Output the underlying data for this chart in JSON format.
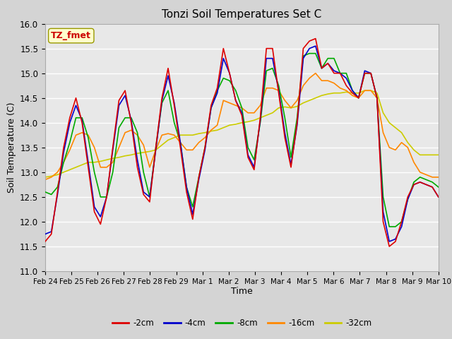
{
  "title": "Tonzi Soil Temperatures Set C",
  "xlabel": "Time",
  "ylabel": "Soil Temperature (C)",
  "ylim": [
    11.0,
    16.0
  ],
  "yticks": [
    11.0,
    11.5,
    12.0,
    12.5,
    13.0,
    13.5,
    14.0,
    14.5,
    15.0,
    15.5,
    16.0
  ],
  "xtick_labels": [
    "Feb 24",
    "Feb 25",
    "Feb 26",
    "Feb 27",
    "Feb 28",
    "Feb 29",
    "Mar 1",
    "Mar 2",
    "Mar 3",
    "Mar 4",
    "Mar 5",
    "Mar 6",
    "Mar 7",
    "Mar 8",
    "Mar 9",
    "Mar 10"
  ],
  "colors": {
    "-2cm": "#dd0000",
    "-4cm": "#0000cc",
    "-8cm": "#00aa00",
    "-16cm": "#ff8800",
    "-32cm": "#cccc00"
  },
  "annotation_text": "TZ_fmet",
  "annotation_color": "#cc0000",
  "annotation_bg": "#ffffcc",
  "linewidth": 1.2,
  "t2cm": [
    11.6,
    11.75,
    12.6,
    13.5,
    14.1,
    14.5,
    14.0,
    13.1,
    12.2,
    11.95,
    12.5,
    13.5,
    14.45,
    14.65,
    14.0,
    13.1,
    12.55,
    12.4,
    13.5,
    14.5,
    15.1,
    14.35,
    13.5,
    12.6,
    12.05,
    12.9,
    13.5,
    14.35,
    14.7,
    15.5,
    15.0,
    14.45,
    14.15,
    13.3,
    13.05,
    14.1,
    15.5,
    15.5,
    14.6,
    13.7,
    13.1,
    14.0,
    15.5,
    15.65,
    15.7,
    15.1,
    15.2,
    15.0,
    15.0,
    14.75,
    14.6,
    14.5,
    15.0,
    15.0,
    14.5,
    12.0,
    11.5,
    11.6,
    12.0,
    12.5,
    12.75,
    12.8,
    12.75,
    12.7,
    12.5
  ],
  "t4cm": [
    11.75,
    11.8,
    12.55,
    13.4,
    14.0,
    14.35,
    14.05,
    13.2,
    12.3,
    12.1,
    12.5,
    13.45,
    14.35,
    14.55,
    14.05,
    13.25,
    12.6,
    12.5,
    13.45,
    14.45,
    14.95,
    14.4,
    13.6,
    12.7,
    12.15,
    12.85,
    13.45,
    14.3,
    14.6,
    15.3,
    15.0,
    14.45,
    14.2,
    13.35,
    13.1,
    14.05,
    15.3,
    15.3,
    14.65,
    13.8,
    13.15,
    13.95,
    15.3,
    15.5,
    15.55,
    15.1,
    15.2,
    15.05,
    15.0,
    14.9,
    14.65,
    14.5,
    15.05,
    15.0,
    14.5,
    12.2,
    11.6,
    11.65,
    11.9,
    12.45,
    12.75,
    12.8,
    12.75,
    12.7,
    12.5
  ],
  "t8cm": [
    12.6,
    12.55,
    12.7,
    13.2,
    13.6,
    14.1,
    14.1,
    13.7,
    13.0,
    12.5,
    12.5,
    13.0,
    13.9,
    14.1,
    14.1,
    13.8,
    13.0,
    12.5,
    13.5,
    14.4,
    14.65,
    14.0,
    13.6,
    12.7,
    12.3,
    12.9,
    13.5,
    14.3,
    14.65,
    14.9,
    14.85,
    14.65,
    14.3,
    13.5,
    13.25,
    14.0,
    15.05,
    15.1,
    14.75,
    14.1,
    13.3,
    14.1,
    15.35,
    15.4,
    15.4,
    15.1,
    15.3,
    15.3,
    15.0,
    15.0,
    14.65,
    14.5,
    15.0,
    15.0,
    14.5,
    12.5,
    11.9,
    11.9,
    12.0,
    12.45,
    12.8,
    12.9,
    12.85,
    12.8,
    12.7
  ],
  "t16cm": [
    12.85,
    12.9,
    13.0,
    13.2,
    13.45,
    13.75,
    13.8,
    13.75,
    13.5,
    13.1,
    13.1,
    13.2,
    13.5,
    13.8,
    13.85,
    13.75,
    13.55,
    13.1,
    13.45,
    13.75,
    13.78,
    13.75,
    13.6,
    13.45,
    13.45,
    13.6,
    13.7,
    13.85,
    13.95,
    14.45,
    14.4,
    14.35,
    14.3,
    14.2,
    14.2,
    14.35,
    14.7,
    14.7,
    14.65,
    14.45,
    14.3,
    14.45,
    14.75,
    14.9,
    15.0,
    14.85,
    14.85,
    14.8,
    14.7,
    14.65,
    14.55,
    14.5,
    14.65,
    14.65,
    14.5,
    13.8,
    13.5,
    13.45,
    13.6,
    13.5,
    13.2,
    13.0,
    12.95,
    12.9,
    12.9
  ],
  "t32cm": [
    12.9,
    12.92,
    12.95,
    13.0,
    13.05,
    13.1,
    13.15,
    13.2,
    13.2,
    13.22,
    13.25,
    13.28,
    13.3,
    13.33,
    13.35,
    13.38,
    13.4,
    13.42,
    13.45,
    13.55,
    13.65,
    13.7,
    13.75,
    13.75,
    13.75,
    13.78,
    13.8,
    13.83,
    13.85,
    13.9,
    13.95,
    13.97,
    14.0,
    14.02,
    14.05,
    14.1,
    14.15,
    14.2,
    14.3,
    14.32,
    14.3,
    14.33,
    14.4,
    14.45,
    14.5,
    14.55,
    14.58,
    14.6,
    14.6,
    14.62,
    14.6,
    14.6,
    14.65,
    14.65,
    14.6,
    14.2,
    14.0,
    13.9,
    13.8,
    13.6,
    13.45,
    13.35,
    13.35,
    13.35,
    13.35
  ]
}
